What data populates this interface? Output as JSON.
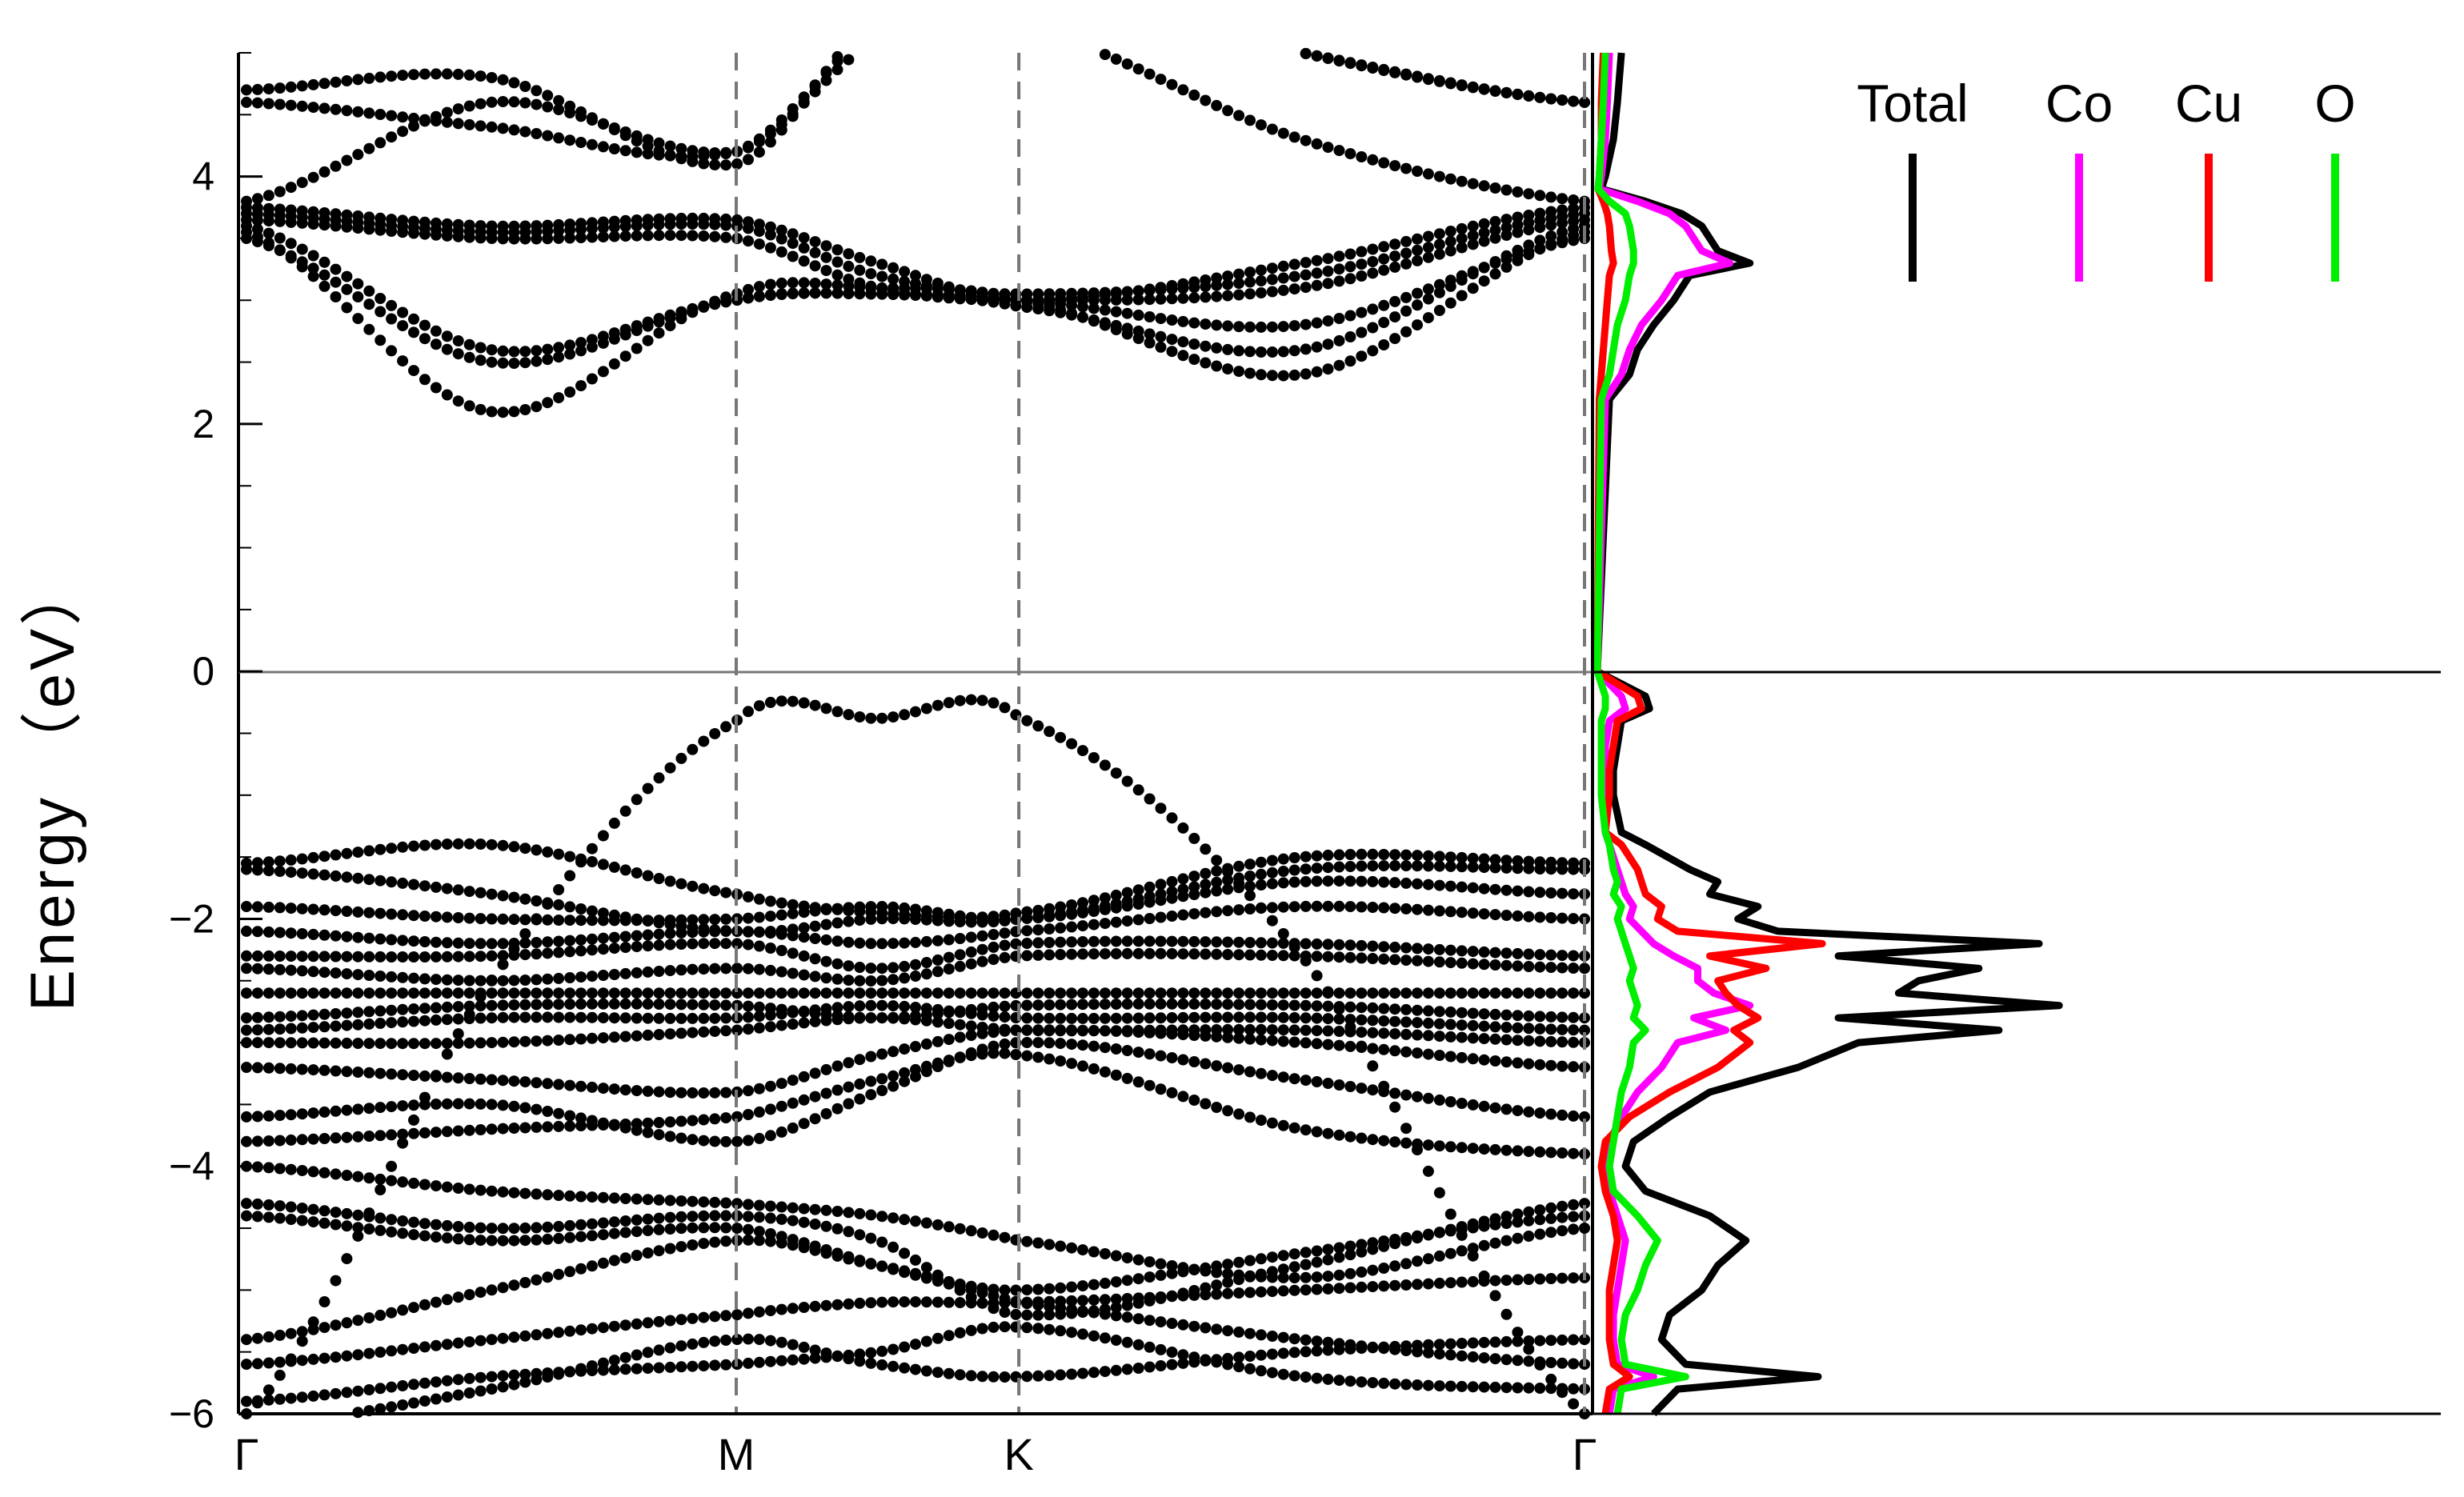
{
  "chart_data": {
    "type": "line",
    "panels": [
      "band-structure",
      "density-of-states"
    ],
    "ylabel": "Energy （eV）",
    "ylim": [
      -6,
      5
    ],
    "yticks": [
      -6,
      -4,
      -2,
      0,
      2,
      4
    ],
    "ytick_labels": [
      "−6",
      "−4",
      "−2",
      "0",
      "2",
      "4"
    ],
    "kpath": {
      "labels": [
        "Γ",
        "M",
        "K",
        "Γ"
      ],
      "positions": [
        0,
        1,
        1.577,
        2.732
      ],
      "high_symmetry_lines": "dashed"
    },
    "fermi_level": 0,
    "bands": {
      "nodes": [
        0,
        0.5,
        1,
        1.289,
        1.577,
        2.155,
        2.732
      ],
      "series": [
        {
          "values": [
            -6.1,
            -5.8,
            -5.4,
            -5.6,
            -5.7,
            -5.5,
            -5.4
          ]
        },
        {
          "values": [
            -5.9,
            -5.7,
            -5.6,
            -5.5,
            -5.3,
            -5.7,
            -5.8
          ]
        },
        {
          "values": [
            -5.6,
            -5.4,
            -5.2,
            -5.1,
            -5.1,
            -5.0,
            -4.9
          ]
        },
        {
          "values": [
            -5.4,
            -5.0,
            -4.6,
            -4.8,
            -5.0,
            -4.7,
            -4.4
          ]
        },
        {
          "values": [
            -4.4,
            -4.6,
            -4.5,
            -4.8,
            -5.1,
            -5.4,
            -5.6
          ]
        },
        {
          "values": [
            -4.3,
            -4.5,
            -4.4,
            -4.6,
            -5.2,
            -4.8,
            -4.3
          ]
        },
        {
          "values": [
            -4.0,
            -4.2,
            -4.3,
            -4.4,
            -4.6,
            -4.9,
            -4.5
          ]
        },
        {
          "values": [
            -3.8,
            -3.7,
            -3.6,
            -3.3,
            -3.1,
            -3.7,
            -3.9
          ]
        },
        {
          "values": [
            -3.6,
            -3.5,
            -3.8,
            -3.4,
            -3.0,
            -3.3,
            -3.6
          ]
        },
        {
          "values": [
            -3.2,
            -3.3,
            -3.4,
            -3.1,
            -2.9,
            -3.0,
            -3.2
          ]
        },
        {
          "values": [
            -3.0,
            -3.0,
            -2.9,
            -2.8,
            -2.9,
            -2.9,
            -3.0
          ]
        },
        {
          "values": [
            -2.9,
            -2.8,
            -2.8,
            -2.7,
            -2.8,
            -2.8,
            -2.9
          ]
        },
        {
          "values": [
            -2.8,
            -2.7,
            -2.7,
            -2.8,
            -2.7,
            -2.7,
            -2.8
          ]
        },
        {
          "values": [
            -2.6,
            -2.6,
            -2.6,
            -2.6,
            -2.6,
            -2.6,
            -2.6
          ]
        },
        {
          "values": [
            -2.4,
            -2.5,
            -2.4,
            -2.5,
            -2.3,
            -2.3,
            -2.4
          ]
        },
        {
          "values": [
            -2.3,
            -2.3,
            -2.2,
            -2.4,
            -2.2,
            -2.2,
            -2.3
          ]
        },
        {
          "values": [
            -2.1,
            -2.2,
            -2.1,
            -2.2,
            -2.1,
            -1.9,
            -2.0
          ]
        },
        {
          "values": [
            -1.9,
            -2.0,
            -2.0,
            -1.9,
            -2.0,
            -1.7,
            -1.8
          ]
        },
        {
          "values": [
            -1.6,
            -1.8,
            -2.1,
            -2.0,
            -2.0,
            -1.6,
            -1.6
          ]
        },
        {
          "values": [
            -1.55,
            -1.4,
            -1.8,
            -1.95,
            -1.95,
            -1.5,
            -1.55
          ]
        },
        {
          "values": [
            -6.0,
            -2.5,
            -0.4,
            -0.38,
            -0.37,
            -2.3,
            -6.0
          ]
        },
        {
          "values": [
            3.5,
            2.5,
            3.0,
            3.05,
            3.0,
            2.8,
            3.5
          ]
        },
        {
          "values": [
            3.55,
            2.1,
            3.05,
            3.1,
            3.0,
            2.4,
            3.55
          ]
        },
        {
          "values": [
            3.6,
            2.6,
            3.0,
            3.05,
            2.95,
            2.6,
            3.6
          ]
        },
        {
          "values": [
            3.65,
            3.5,
            3.5,
            3.1,
            3.0,
            3.1,
            3.65
          ]
        },
        {
          "values": [
            3.7,
            3.55,
            3.6,
            3.2,
            3.05,
            3.2,
            3.7
          ]
        },
        {
          "values": [
            3.75,
            3.6,
            3.65,
            3.3,
            3.0,
            3.3,
            3.75
          ]
        },
        {
          "values": [
            3.8,
            4.6,
            4.2,
            5.1,
            5.2,
            4.3,
            3.8
          ]
        },
        {
          "values": [
            4.6,
            4.4,
            4.2,
            5.2,
            5.5,
            5.0,
            4.6
          ]
        },
        {
          "values": [
            4.7,
            4.8,
            4.1,
            5.3,
            5.6,
            5.0,
            4.6
          ]
        }
      ]
    },
    "dos": {
      "xlim": [
        0,
        21
      ],
      "energies": [
        -6.0,
        -5.8,
        -5.7,
        -5.6,
        -5.4,
        -5.2,
        -5.0,
        -4.8,
        -4.6,
        -4.4,
        -4.2,
        -4.0,
        -3.8,
        -3.6,
        -3.4,
        -3.2,
        -3.0,
        -2.9,
        -2.8,
        -2.7,
        -2.6,
        -2.5,
        -2.4,
        -2.3,
        -2.2,
        -2.1,
        -2.0,
        -1.9,
        -1.8,
        -1.7,
        -1.6,
        -1.4,
        -1.3,
        -1.0,
        -0.8,
        -0.6,
        -0.4,
        -0.3,
        -0.2,
        0.0,
        2.2,
        2.4,
        2.6,
        2.8,
        3.0,
        3.2,
        3.3,
        3.4,
        3.6,
        3.7,
        3.8,
        3.9,
        4.0,
        4.3,
        4.6,
        5.0
      ],
      "series": [
        {
          "name": "Total",
          "color": "#000000",
          "values": [
            1.4,
            2.0,
            5.5,
            2.2,
            1.6,
            1.8,
            2.6,
            3.0,
            3.7,
            2.8,
            1.2,
            0.7,
            0.9,
            1.8,
            2.8,
            5.0,
            6.5,
            10.0,
            6.0,
            11.5,
            7.5,
            8.0,
            9.5,
            6.0,
            11.0,
            4.5,
            3.5,
            4.0,
            2.8,
            3.0,
            2.3,
            1.2,
            0.6,
            0.4,
            0.4,
            0.5,
            0.6,
            1.3,
            1.2,
            0,
            0.3,
            0.8,
            1.0,
            1.4,
            1.9,
            2.3,
            3.8,
            3.0,
            2.6,
            2.1,
            1.2,
            0.1,
            0.2,
            0.4,
            0.5,
            0.6
          ]
        },
        {
          "name": "Co",
          "color": "#ff00ff",
          "values": [
            0.3,
            0.4,
            1.4,
            0.5,
            0.4,
            0.4,
            0.5,
            0.6,
            0.7,
            0.5,
            0.3,
            0.2,
            0.3,
            0.6,
            1.0,
            1.6,
            2.0,
            3.2,
            2.4,
            3.8,
            2.9,
            2.5,
            2.5,
            1.9,
            1.4,
            1.1,
            0.8,
            0.9,
            0.7,
            0.6,
            0.5,
            0.3,
            0.2,
            0.2,
            0.2,
            0.2,
            0.3,
            0.7,
            0.6,
            0,
            0.2,
            0.6,
            0.8,
            1.1,
            1.6,
            2.0,
            3.3,
            2.6,
            2.2,
            1.8,
            1.0,
            0.05,
            0.1,
            0.2,
            0.25,
            0.3
          ]
        },
        {
          "name": "Cu",
          "color": "#ff0000",
          "values": [
            0.2,
            0.3,
            0.8,
            0.4,
            0.3,
            0.3,
            0.3,
            0.4,
            0.5,
            0.4,
            0.2,
            0.1,
            0.2,
            0.8,
            1.8,
            3.0,
            3.8,
            3.4,
            4.0,
            3.5,
            3.2,
            3.0,
            4.2,
            2.8,
            5.6,
            2.0,
            1.5,
            1.6,
            1.2,
            1.1,
            1.0,
            0.6,
            0.2,
            0.3,
            0.3,
            0.4,
            0.5,
            1.1,
            1.0,
            0,
            0.05,
            0.1,
            0.15,
            0.2,
            0.25,
            0.3,
            0.4,
            0.35,
            0.3,
            0.25,
            0.15,
            0.02,
            0.05,
            0.1,
            0.1,
            0.15
          ]
        },
        {
          "name": "O",
          "color": "#00ee00",
          "values": [
            0.5,
            0.6,
            2.2,
            0.7,
            0.6,
            0.7,
            1.0,
            1.2,
            1.5,
            1.0,
            0.4,
            0.3,
            0.4,
            0.5,
            0.6,
            0.8,
            0.9,
            1.2,
            0.9,
            1.0,
            0.9,
            0.8,
            0.9,
            0.8,
            0.7,
            0.6,
            0.5,
            0.6,
            0.4,
            0.5,
            0.4,
            0.3,
            0.2,
            0.1,
            0.1,
            0.1,
            0.1,
            0.2,
            0.2,
            0,
            0.1,
            0.3,
            0.4,
            0.5,
            0.7,
            0.8,
            0.9,
            0.9,
            0.8,
            0.7,
            0.3,
            0.02,
            0.05,
            0.1,
            0.15,
            0.2
          ]
        }
      ]
    },
    "legend": {
      "placement": "top-right",
      "entries": [
        "Total",
        "Co",
        "Cu",
        "O"
      ]
    }
  }
}
